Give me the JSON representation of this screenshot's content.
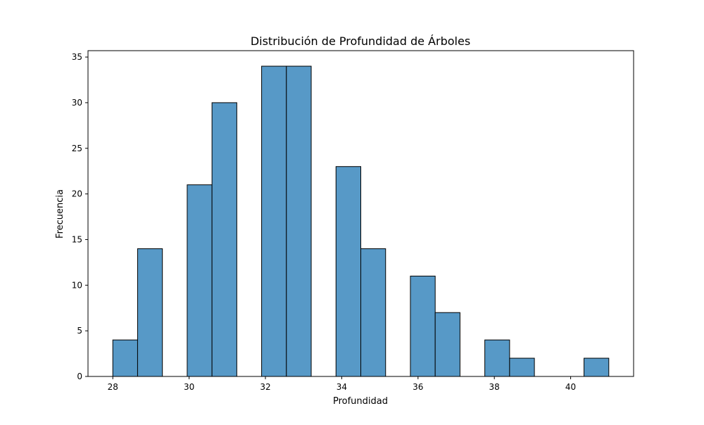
{
  "chart_data": {
    "type": "bar",
    "title": "Distribución de Profundidad de Árboles",
    "xlabel": "Profundidad",
    "ylabel": "Frecuencia",
    "xlim": [
      27.35,
      41.65
    ],
    "ylim": [
      0,
      35.7
    ],
    "xticks": [
      28,
      30,
      32,
      34,
      36,
      38,
      40
    ],
    "yticks": [
      0,
      5,
      10,
      15,
      20,
      25,
      30,
      35
    ],
    "grid": false,
    "bar_color": "#5799c7",
    "edge_color": "#000000",
    "bins": [
      {
        "x0": 28.0,
        "x1": 28.65,
        "count": 4
      },
      {
        "x0": 28.65,
        "x1": 29.3,
        "count": 14
      },
      {
        "x0": 29.3,
        "x1": 29.95,
        "count": 0
      },
      {
        "x0": 29.95,
        "x1": 30.6,
        "count": 21
      },
      {
        "x0": 30.6,
        "x1": 31.25,
        "count": 30
      },
      {
        "x0": 31.25,
        "x1": 31.9,
        "count": 0
      },
      {
        "x0": 31.9,
        "x1": 32.55,
        "count": 34
      },
      {
        "x0": 32.55,
        "x1": 33.2,
        "count": 34
      },
      {
        "x0": 33.2,
        "x1": 33.85,
        "count": 0
      },
      {
        "x0": 33.85,
        "x1": 34.5,
        "count": 23
      },
      {
        "x0": 34.5,
        "x1": 35.15,
        "count": 14
      },
      {
        "x0": 35.15,
        "x1": 35.8,
        "count": 0
      },
      {
        "x0": 35.8,
        "x1": 36.45,
        "count": 11
      },
      {
        "x0": 36.45,
        "x1": 37.1,
        "count": 7
      },
      {
        "x0": 37.1,
        "x1": 37.75,
        "count": 0
      },
      {
        "x0": 37.75,
        "x1": 38.4,
        "count": 4
      },
      {
        "x0": 38.4,
        "x1": 39.05,
        "count": 2
      },
      {
        "x0": 39.05,
        "x1": 39.7,
        "count": 0
      },
      {
        "x0": 39.7,
        "x1": 40.35,
        "count": 0
      },
      {
        "x0": 40.35,
        "x1": 41.0,
        "count": 2
      }
    ]
  }
}
